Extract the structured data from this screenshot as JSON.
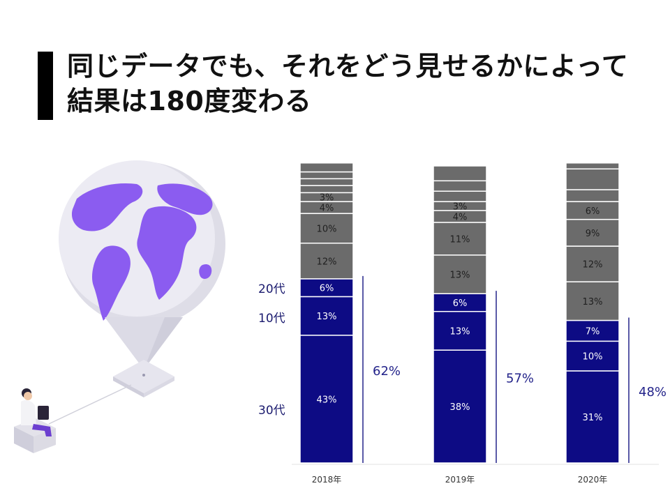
{
  "slide": {
    "title_line1": "同じデータでも、それをどう見せるかによって",
    "title_line2": "結果は180度変わる"
  },
  "colors": {
    "navy": "#0d0b84",
    "gray": "#6b6b6b",
    "accent_line": "#23238a",
    "globe_purple": "#8b5cf0",
    "globe_ocean": "#e9e8f1"
  },
  "illustration": {
    "globe": "globe-icon",
    "person": "person-at-laptop-icon"
  },
  "chart_data": {
    "type": "bar",
    "stacked": true,
    "categories": [
      "2018年",
      "2019年",
      "2020年"
    ],
    "side_labels": [
      "20代",
      "10代",
      "30代"
    ],
    "bars": [
      {
        "year": "2018年",
        "total_label": "62%",
        "navy_segments": [
          {
            "value": 43,
            "label": "43%"
          },
          {
            "value": 13,
            "label": "13%"
          },
          {
            "value": 6,
            "label": "6%"
          }
        ],
        "gray_segments": [
          {
            "value": 12,
            "label": "12%"
          },
          {
            "value": 10,
            "label": "10%"
          },
          {
            "value": 4,
            "label": "4%"
          },
          {
            "value": 3,
            "label": "3%"
          },
          {
            "value": 2.4,
            "label": ""
          },
          {
            "value": 2.3,
            "label": ""
          },
          {
            "value": 2.3,
            "label": ""
          },
          {
            "value": 3,
            "label": ""
          }
        ]
      },
      {
        "year": "2019年",
        "total_label": "57%",
        "navy_segments": [
          {
            "value": 38,
            "label": "38%"
          },
          {
            "value": 13,
            "label": "13%"
          },
          {
            "value": 6,
            "label": "6%"
          }
        ],
        "gray_segments": [
          {
            "value": 13,
            "label": "13%"
          },
          {
            "value": 11,
            "label": "11%"
          },
          {
            "value": 4,
            "label": "4%"
          },
          {
            "value": 3,
            "label": "3%"
          },
          {
            "value": 3.5,
            "label": ""
          },
          {
            "value": 3.5,
            "label": ""
          },
          {
            "value": 5,
            "label": ""
          }
        ]
      },
      {
        "year": "2020年",
        "total_label": "48%",
        "navy_segments": [
          {
            "value": 31,
            "label": "31%"
          },
          {
            "value": 10,
            "label": "10%"
          },
          {
            "value": 7,
            "label": "7%"
          }
        ],
        "gray_segments": [
          {
            "value": 13,
            "label": "13%"
          },
          {
            "value": 12,
            "label": "12%"
          },
          {
            "value": 9,
            "label": "9%"
          },
          {
            "value": 6,
            "label": "6%"
          },
          {
            "value": 4,
            "label": ""
          },
          {
            "value": 7,
            "label": ""
          },
          {
            "value": 2,
            "label": ""
          }
        ]
      }
    ],
    "ylim": [
      0,
      100
    ],
    "grid": false,
    "legend": "none"
  }
}
